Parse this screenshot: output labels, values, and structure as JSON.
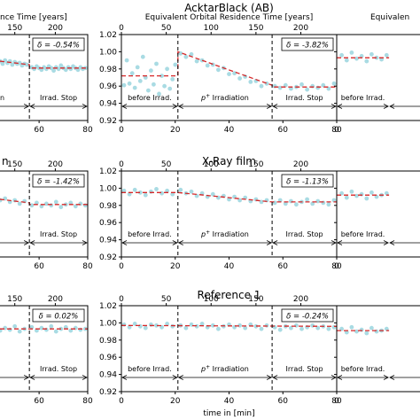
{
  "chart_data": [
    {
      "type": "scatter",
      "panel": "top-left",
      "title": "",
      "top_axis_label": "nce Time [years]",
      "xlabel": "",
      "ylabel": "",
      "top_ticks": [
        150,
        200
      ],
      "x_ticks": [
        60,
        80
      ],
      "delta": "δ = -0.54%",
      "annotations": [
        "n",
        "Irrad. Stop"
      ],
      "irrad_start": null,
      "irrad_stop": 56,
      "xlim": [
        41,
        80
      ],
      "ylim": [
        0.92,
        1.02
      ],
      "fit": [
        {
          "x": 41,
          "y": 0.99
        },
        {
          "x": 56,
          "y": 0.985
        },
        {
          "x": 56,
          "y": 0.981
        },
        {
          "x": 80,
          "y": 0.981
        }
      ],
      "x": [
        42,
        43,
        44,
        45,
        46,
        47,
        48,
        49,
        50,
        51,
        52,
        53,
        54,
        55,
        57,
        58,
        59,
        60,
        61,
        62,
        63,
        64,
        65,
        66,
        67,
        68,
        69,
        70,
        71,
        72,
        73,
        74,
        75,
        76,
        77,
        78,
        79
      ],
      "y": [
        0.991,
        0.988,
        0.989,
        0.986,
        0.99,
        0.987,
        0.989,
        0.985,
        0.988,
        0.986,
        0.987,
        0.984,
        0.986,
        0.985,
        0.982,
        0.98,
        0.983,
        0.981,
        0.979,
        0.982,
        0.98,
        0.983,
        0.981,
        0.978,
        0.982,
        0.98,
        0.984,
        0.981,
        0.979,
        0.982,
        0.98,
        0.983,
        0.981,
        0.979,
        0.982,
        0.98,
        0.981
      ]
    },
    {
      "type": "scatter",
      "panel": "top-middle",
      "title": "AcktarBlack (AB)",
      "top_axis_label": "Equivalent Orbital Residence Time [years]",
      "xlabel": "",
      "ylabel": "",
      "top_ticks": [
        0,
        50,
        100,
        150,
        200
      ],
      "x_ticks": [
        0,
        20,
        40,
        60,
        80
      ],
      "y_ticks": [
        0.92,
        0.94,
        0.96,
        0.98,
        1.0,
        1.02
      ],
      "delta": "δ = -3.82%",
      "annotations": [
        "before Irrad.",
        "p+ Irradiation",
        "Irrad. Stop"
      ],
      "irrad_start": 21,
      "irrad_stop": 56,
      "xlim": [
        0,
        80
      ],
      "ylim": [
        0.92,
        1.02
      ],
      "fit": [
        {
          "x": 0,
          "y": 0.972
        },
        {
          "x": 21,
          "y": 0.972
        },
        {
          "x": 21,
          "y": 1.0
        },
        {
          "x": 56,
          "y": 0.961
        },
        {
          "x": 56,
          "y": 0.959
        },
        {
          "x": 80,
          "y": 0.959
        }
      ],
      "x": [
        1,
        2,
        3,
        4,
        5,
        6,
        7,
        8,
        9,
        10,
        11,
        12,
        13,
        14,
        15,
        16,
        17,
        18,
        19,
        20,
        22,
        24,
        26,
        28,
        30,
        32,
        34,
        36,
        38,
        40,
        42,
        44,
        46,
        48,
        50,
        52,
        54,
        57,
        59,
        61,
        63,
        65,
        67,
        69,
        71,
        73,
        75,
        77,
        79
      ],
      "y": [
        0.961,
        0.99,
        0.963,
        0.975,
        0.958,
        0.982,
        0.966,
        0.994,
        0.97,
        0.955,
        0.978,
        0.962,
        0.986,
        0.951,
        0.972,
        0.96,
        0.98,
        0.957,
        0.968,
        0.985,
        0.998,
        0.994,
        0.997,
        0.989,
        0.99,
        0.984,
        0.985,
        0.979,
        0.981,
        0.974,
        0.975,
        0.969,
        0.971,
        0.965,
        0.966,
        0.96,
        0.963,
        0.96,
        0.958,
        0.961,
        0.957,
        0.959,
        0.962,
        0.956,
        0.96,
        0.958,
        0.961,
        0.957,
        0.963
      ]
    },
    {
      "type": "scatter",
      "panel": "top-right",
      "title": "",
      "top_axis_label": "Equivalen",
      "xlabel": "",
      "ylabel": "",
      "x_ticks": [
        0
      ],
      "annotations": [
        "before Irrad."
      ],
      "irrad_start": null,
      "irrad_stop": null,
      "xlim": [
        0,
        80
      ],
      "ylim": [
        0.92,
        1.02
      ],
      "fit": [
        {
          "x": 0,
          "y": 0.993
        },
        {
          "x": 21,
          "y": 0.993
        }
      ],
      "x": [
        2,
        4,
        6,
        8,
        10,
        12,
        14,
        16,
        18,
        20
      ],
      "y": [
        0.996,
        0.99,
        0.999,
        0.992,
        0.995,
        0.989,
        0.997,
        0.993,
        0.991,
        0.996
      ]
    },
    {
      "type": "scatter",
      "panel": "middle-left",
      "title": "n",
      "xlabel": "",
      "ylabel": "",
      "top_ticks": [
        150,
        200
      ],
      "x_ticks": [
        60,
        80
      ],
      "delta": "δ = -1.42%",
      "annotations": [
        "Irrad. Stop"
      ],
      "irrad_start": null,
      "irrad_stop": 56,
      "xlim": [
        41,
        80
      ],
      "ylim": [
        0.92,
        1.02
      ],
      "fit": [
        {
          "x": 41,
          "y": 0.988
        },
        {
          "x": 56,
          "y": 0.983
        },
        {
          "x": 56,
          "y": 0.981
        },
        {
          "x": 80,
          "y": 0.981
        }
      ],
      "x": [
        42,
        44,
        46,
        48,
        50,
        52,
        54,
        57,
        59,
        61,
        63,
        65,
        67,
        69,
        71,
        73,
        75,
        77,
        79
      ],
      "y": [
        0.989,
        0.986,
        0.988,
        0.984,
        0.986,
        0.982,
        0.985,
        0.98,
        0.983,
        0.979,
        0.982,
        0.98,
        0.984,
        0.978,
        0.981,
        0.983,
        0.979,
        0.982,
        0.98
      ]
    },
    {
      "type": "scatter",
      "panel": "middle-middle",
      "title": "X-Ray film",
      "xlabel": "",
      "ylabel": "",
      "top_ticks": [
        0,
        50,
        100,
        150,
        200
      ],
      "x_ticks": [
        0,
        20,
        40,
        60,
        80
      ],
      "y_ticks": [
        0.92,
        0.94,
        0.96,
        0.98,
        1.0,
        1.02
      ],
      "delta": "δ = -1.13%",
      "annotations": [
        "before Irrad.",
        "p+ Irradiation",
        "Irrad. Stop"
      ],
      "irrad_start": 21,
      "irrad_stop": 56,
      "xlim": [
        0,
        80
      ],
      "ylim": [
        0.92,
        1.02
      ],
      "fit": [
        {
          "x": 0,
          "y": 0.995
        },
        {
          "x": 21,
          "y": 0.995
        },
        {
          "x": 56,
          "y": 0.984
        },
        {
          "x": 80,
          "y": 0.984
        }
      ],
      "x": [
        1,
        3,
        5,
        7,
        9,
        11,
        13,
        15,
        17,
        19,
        22,
        24,
        26,
        28,
        30,
        32,
        34,
        36,
        38,
        40,
        42,
        44,
        46,
        48,
        50,
        52,
        54,
        57,
        59,
        61,
        63,
        65,
        67,
        69,
        71,
        73,
        75,
        77,
        79
      ],
      "y": [
        0.997,
        0.993,
        0.998,
        0.995,
        0.992,
        0.996,
        0.999,
        0.994,
        0.997,
        0.993,
        0.998,
        0.994,
        0.996,
        0.991,
        0.994,
        0.99,
        0.993,
        0.989,
        0.991,
        0.987,
        0.99,
        0.986,
        0.989,
        0.985,
        0.987,
        0.984,
        0.986,
        0.983,
        0.986,
        0.982,
        0.985,
        0.981,
        0.984,
        0.987,
        0.982,
        0.985,
        0.983,
        0.981,
        0.986
      ]
    },
    {
      "type": "scatter",
      "panel": "middle-right",
      "title": "",
      "xlabel": "",
      "ylabel": "",
      "x_ticks": [
        0
      ],
      "annotations": [
        "before Irrad."
      ],
      "irrad_start": null,
      "irrad_stop": null,
      "xlim": [
        0,
        80
      ],
      "ylim": [
        0.92,
        1.02
      ],
      "fit": [
        {
          "x": 0,
          "y": 0.992
        },
        {
          "x": 21,
          "y": 0.992
        }
      ],
      "x": [
        2,
        4,
        6,
        8,
        10,
        12,
        14,
        16,
        18,
        20
      ],
      "y": [
        0.994,
        0.989,
        0.996,
        0.991,
        0.993,
        0.988,
        0.995,
        0.99,
        0.992,
        0.994
      ]
    },
    {
      "type": "scatter",
      "panel": "bottom-left",
      "title": "",
      "xlabel": "",
      "ylabel": "",
      "top_ticks": [
        150,
        200
      ],
      "x_ticks": [
        60,
        80
      ],
      "delta": "δ = 0.02%",
      "annotations": [
        "Irrad. Stop"
      ],
      "irrad_start": null,
      "irrad_stop": 56,
      "xlim": [
        41,
        80
      ],
      "ylim": [
        0.92,
        1.02
      ],
      "fit": [
        {
          "x": 41,
          "y": 0.993
        },
        {
          "x": 80,
          "y": 0.993
        }
      ],
      "x": [
        42,
        44,
        46,
        48,
        50,
        52,
        54,
        57,
        59,
        61,
        63,
        65,
        67,
        69,
        71,
        73,
        75,
        77,
        79
      ],
      "y": [
        0.995,
        0.991,
        0.994,
        0.992,
        0.996,
        0.99,
        0.993,
        0.995,
        0.991,
        0.994,
        0.992,
        0.996,
        0.99,
        0.993,
        0.995,
        0.991,
        0.994,
        0.992,
        0.993
      ]
    },
    {
      "type": "scatter",
      "panel": "bottom-middle",
      "title": "Reference 1",
      "xlabel": "time in [min]",
      "ylabel": "",
      "top_ticks": [
        0,
        50,
        100,
        150,
        200
      ],
      "x_ticks": [
        0,
        20,
        40,
        60,
        80
      ],
      "y_ticks": [
        0.92,
        0.94,
        0.96,
        0.98,
        1.0,
        1.02
      ],
      "delta": "δ = -0.24%",
      "annotations": [
        "before Irrad.",
        "p+ Irradiation",
        "Irrad. Stop"
      ],
      "irrad_start": 21,
      "irrad_stop": 56,
      "xlim": [
        0,
        80
      ],
      "ylim": [
        0.92,
        1.02
      ],
      "fit": [
        {
          "x": 0,
          "y": 0.997
        },
        {
          "x": 80,
          "y": 0.996
        }
      ],
      "x": [
        1,
        3,
        5,
        7,
        9,
        11,
        13,
        15,
        17,
        19,
        22,
        24,
        26,
        28,
        30,
        32,
        34,
        36,
        38,
        40,
        42,
        44,
        46,
        48,
        50,
        52,
        54,
        57,
        59,
        61,
        63,
        65,
        67,
        69,
        71,
        73,
        75,
        77,
        79
      ],
      "y": [
        0.998,
        0.995,
        0.999,
        0.996,
        0.994,
        0.998,
        0.997,
        0.995,
        0.999,
        0.996,
        0.997,
        0.994,
        0.998,
        0.996,
        0.999,
        0.995,
        0.997,
        0.993,
        0.996,
        0.998,
        0.995,
        0.997,
        0.994,
        0.998,
        0.996,
        0.993,
        0.997,
        0.995,
        0.992,
        0.996,
        0.994,
        0.997,
        0.993,
        0.995,
        0.997,
        0.994,
        0.996,
        0.993,
        0.995
      ]
    },
    {
      "type": "scatter",
      "panel": "bottom-right",
      "title": "",
      "xlabel": "",
      "ylabel": "",
      "x_ticks": [
        0
      ],
      "annotations": [
        "before Irrad."
      ],
      "irrad_start": null,
      "irrad_stop": null,
      "xlim": [
        0,
        80
      ],
      "ylim": [
        0.92,
        1.02
      ],
      "fit": [
        {
          "x": 0,
          "y": 0.991
        },
        {
          "x": 21,
          "y": 0.991
        }
      ],
      "x": [
        2,
        4,
        6,
        8,
        10,
        12,
        14,
        16,
        18,
        20
      ],
      "y": [
        0.993,
        0.989,
        0.995,
        0.99,
        0.992,
        0.988,
        0.994,
        0.99,
        0.991,
        0.993
      ]
    }
  ],
  "colors": {
    "points": "#a9dbe3",
    "fit": "#d62728",
    "axes": "#000000",
    "box": "#000000"
  }
}
